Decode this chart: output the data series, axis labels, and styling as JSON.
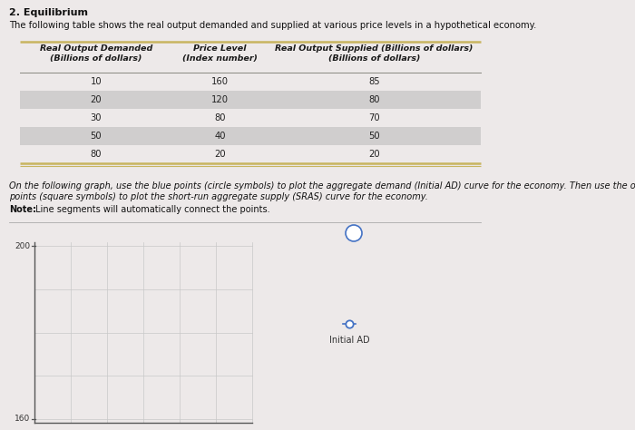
{
  "title": "2. Equilibrium",
  "subtitle": "The following table shows the real output demanded and supplied at various price levels in a hypothetical economy.",
  "col1_header1": "Real Output Demanded",
  "col1_header2": "(Billions of dollars)",
  "col2_header1": "Price Level",
  "col2_header2": "(Index number)",
  "col3_header1": "Real Output Supplied (Billions of dollars)",
  "col3_header2": "(Billions of dollars)",
  "table_data": [
    [
      10,
      160,
      85
    ],
    [
      20,
      120,
      80
    ],
    [
      30,
      80,
      70
    ],
    [
      50,
      40,
      50
    ],
    [
      80,
      20,
      20
    ]
  ],
  "instruction_line1": "On the following graph, use the blue points (circle symbols) to plot the aggregate demand (Initial AD) curve for the economy. Then use the orange",
  "instruction_line2": "points (square symbols) to plot the short-run aggregate supply (SRAS) curve for the economy.",
  "note_bold": "Note:",
  "note_rest": " Line segments will automatically connect the points.",
  "legend_label": "Initial AD",
  "background_color": "#ede9e9",
  "gold_line_color": "#c8b560",
  "alt_row_color": "#d0cece",
  "white_row_color": "#ede9e9",
  "header_text_color": "#1a1a1a",
  "data_text_color": "#222222",
  "graph_grid_color": "#c8c8c8",
  "graph_axis_color": "#555555",
  "legend_marker_color": "#4472c4",
  "question_circle_color": "#4472c4"
}
